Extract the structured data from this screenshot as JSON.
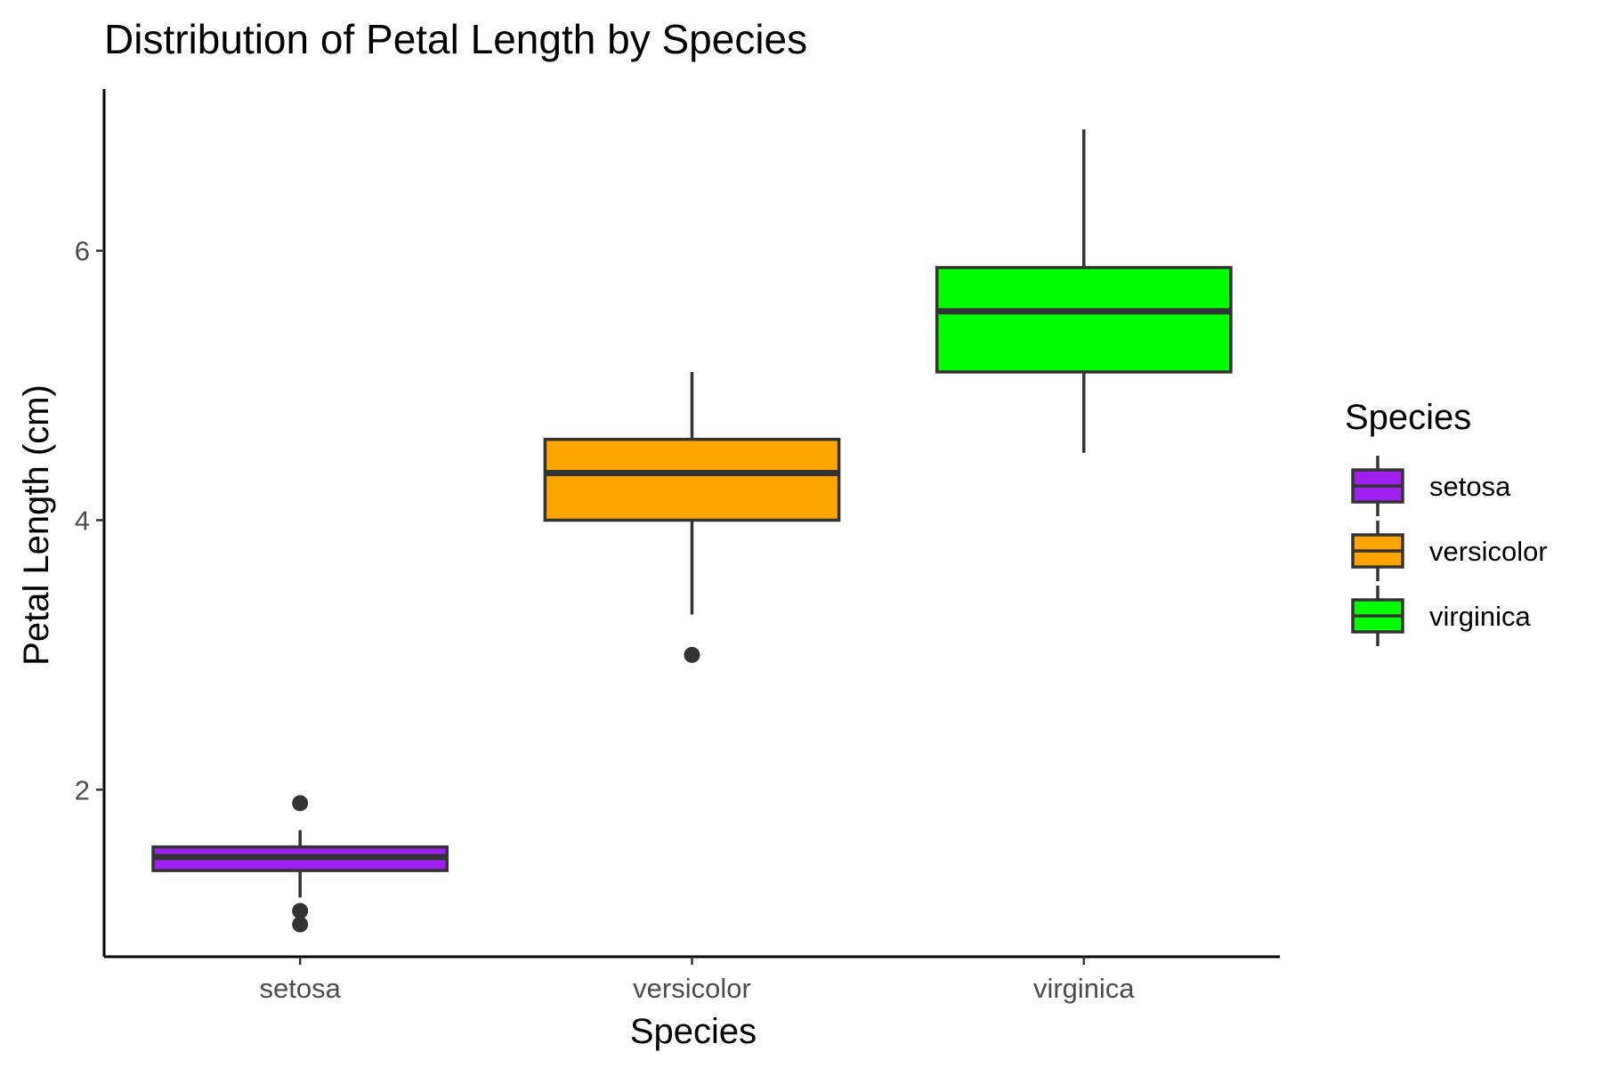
{
  "chart_data": {
    "type": "boxplot",
    "title": "Distribution of Petal Length by Species",
    "xlabel": "Species",
    "ylabel": "Petal Length (cm)",
    "ylim": [
      0.76,
      7.2
    ],
    "yticks": [
      2,
      4,
      6
    ],
    "grid": false,
    "categories": [
      "setosa",
      "versicolor",
      "virginica"
    ],
    "boxes": [
      {
        "name": "setosa",
        "color": "#A020F0",
        "whisker_low": 1.2,
        "q1": 1.4,
        "median": 1.5,
        "q3": 1.575,
        "whisker_high": 1.7,
        "outliers": [
          1.0,
          1.1,
          1.9
        ]
      },
      {
        "name": "versicolor",
        "color": "#FFA500",
        "whisker_low": 3.3,
        "q1": 4.0,
        "median": 4.35,
        "q3": 4.6,
        "whisker_high": 5.1,
        "outliers": [
          3.0
        ]
      },
      {
        "name": "virginica",
        "color": "#00FF00",
        "whisker_low": 4.5,
        "q1": 5.1,
        "median": 5.55,
        "q3": 5.875,
        "whisker_high": 6.9,
        "outliers": []
      }
    ],
    "legend": {
      "title": "Species",
      "position": "right",
      "entries": [
        "setosa",
        "versicolor",
        "virginica"
      ]
    },
    "box_outline_color": "#333333"
  }
}
